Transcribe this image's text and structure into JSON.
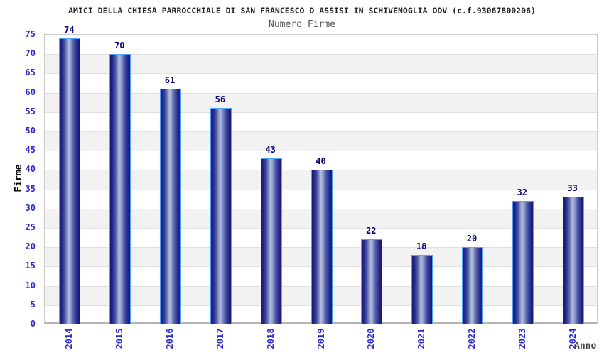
{
  "chart_data": {
    "type": "bar",
    "title": "AMICI DELLA CHIESA PARROCCHIALE DI SAN FRANCESCO D ASSISI IN SCHIVENOGLIA ODV (c.f.93067800206)",
    "subtitle": "Numero Firme",
    "categories": [
      "2014",
      "2015",
      "2016",
      "2017",
      "2018",
      "2019",
      "2020",
      "2021",
      "2022",
      "2023",
      "2024"
    ],
    "values": [
      74,
      70,
      61,
      56,
      43,
      40,
      22,
      18,
      20,
      32,
      33
    ],
    "xlabel": "Anno",
    "ylabel": "Firme",
    "ylim": [
      0,
      75
    ],
    "ytick_step": 5,
    "grid": true,
    "legend": "none",
    "band_pattern": "alternating white/gray every 5 units, gray on 5-10,15-20,...,65-70",
    "colors": {
      "bar_dark": "#181875",
      "bar_highlight": "#b3bede",
      "bar_border": "#4da3f5",
      "value_label": "#00007a",
      "tick_label": "#2a2ad0",
      "title": "#222222",
      "subtitle": "#555555",
      "y_axis_title": "#000000",
      "x_axis_title": "#404040",
      "band_gray": "#f2f2f2",
      "gridline": "#e0e0e0",
      "plot_border": "#cacaca"
    }
  }
}
